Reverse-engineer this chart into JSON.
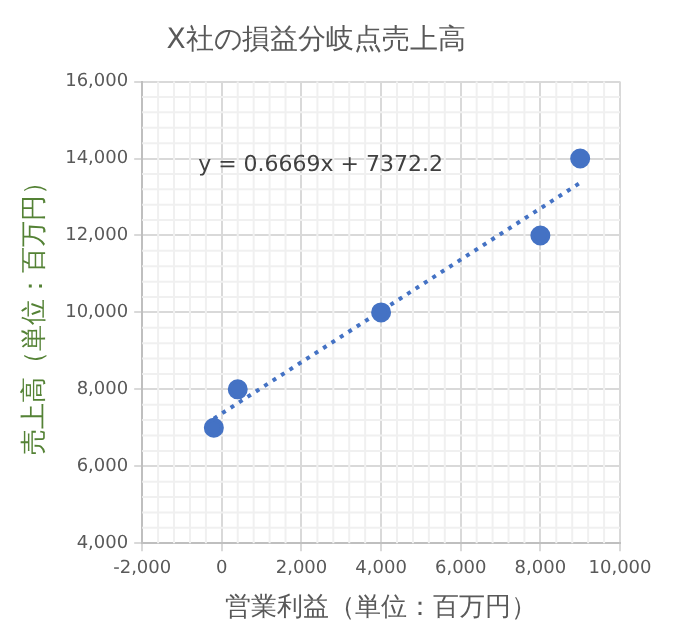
{
  "chart_data": {
    "type": "scatter",
    "title": "X社の損益分岐点売上高",
    "xlabel": "営業利益（単位：百万円）",
    "ylabel": "売上高（単位：百万円）",
    "x": [
      -200,
      400,
      4000,
      8000,
      9000
    ],
    "series": [
      {
        "type": "scatter",
        "color": "#4472c4",
        "values": [
          7000,
          8000,
          10000,
          12000,
          14000
        ],
        "marker": "circle"
      },
      {
        "type": "line",
        "color": "#4472c4",
        "x": [
          -200,
          9000
        ],
        "values": [
          7240,
          13370
        ],
        "marker": "none",
        "line_style": "dotted"
      }
    ],
    "xlim": [
      -2000,
      10000
    ],
    "xticks": [
      {
        "value": -2000,
        "label": "-2,000"
      },
      0,
      {
        "value": 2000,
        "label": "2,000"
      },
      {
        "value": 4000,
        "label": "4,000"
      },
      {
        "value": 6000,
        "label": "6,000"
      },
      {
        "value": 8000,
        "label": "8,000"
      },
      {
        "value": 10000,
        "label": "10,000"
      }
    ],
    "ylim": [
      4000,
      16000
    ],
    "yticks": [
      {
        "value": 4000,
        "label": "4,000"
      },
      {
        "value": 6000,
        "label": "6,000"
      },
      {
        "value": 8000,
        "label": "8,000"
      },
      {
        "value": 10000,
        "label": "10,000"
      },
      {
        "value": 12000,
        "label": "12,000"
      },
      {
        "value": 14000,
        "label": "14,000"
      },
      {
        "value": 16000,
        "label": "16,000"
      }
    ],
    "grid": true,
    "legend": false,
    "annotations": [
      "y = 0.6669x + 7372.2"
    ]
  }
}
